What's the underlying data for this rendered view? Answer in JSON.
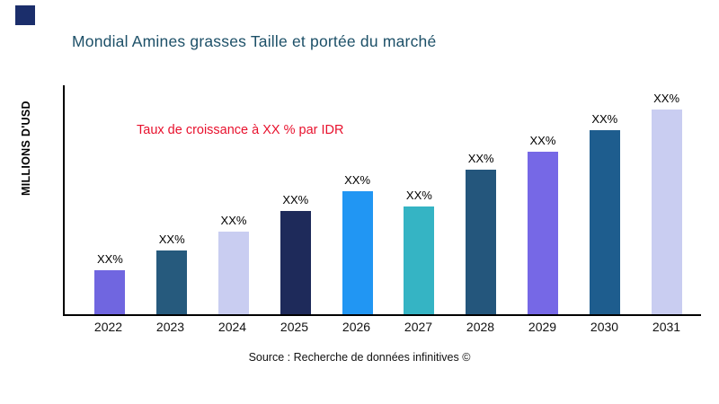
{
  "logo": {
    "color": "#1b2e6b"
  },
  "header": {
    "title": "Mondial Amines grasses Taille et portée du marché",
    "title_color": "#1d5068"
  },
  "chart_data": {
    "type": "bar",
    "title": "Mondial Amines grasses Taille et portée du marché",
    "ylabel": "MILLIONS D'USD",
    "xlabel": "",
    "categories": [
      "2022",
      "2023",
      "2024",
      "2025",
      "2026",
      "2027",
      "2028",
      "2029",
      "2030",
      "2031"
    ],
    "values": [
      50,
      72,
      94,
      117,
      140,
      122,
      164,
      185,
      209,
      232
    ],
    "ylim": [
      0,
      260
    ],
    "bar_labels": [
      "XX%",
      "XX%",
      "XX%",
      "XX%",
      "XX%",
      "XX%",
      "XX%",
      "XX%",
      "XX%",
      "XX%"
    ],
    "bar_colors": [
      "#7066e0",
      "#265a7d",
      "#c9cdf1",
      "#1e2a5a",
      "#2196f3",
      "#35b4c4",
      "#24567c",
      "#7668e6",
      "#1e5d8e",
      "#c9cdf1"
    ],
    "annotation": "Taux de croissance à XX % par IDR",
    "annotation_color": "#e8112d",
    "grid": false,
    "legend": false
  },
  "footer": {
    "source": "Source : Recherche de données infinitives ©"
  }
}
